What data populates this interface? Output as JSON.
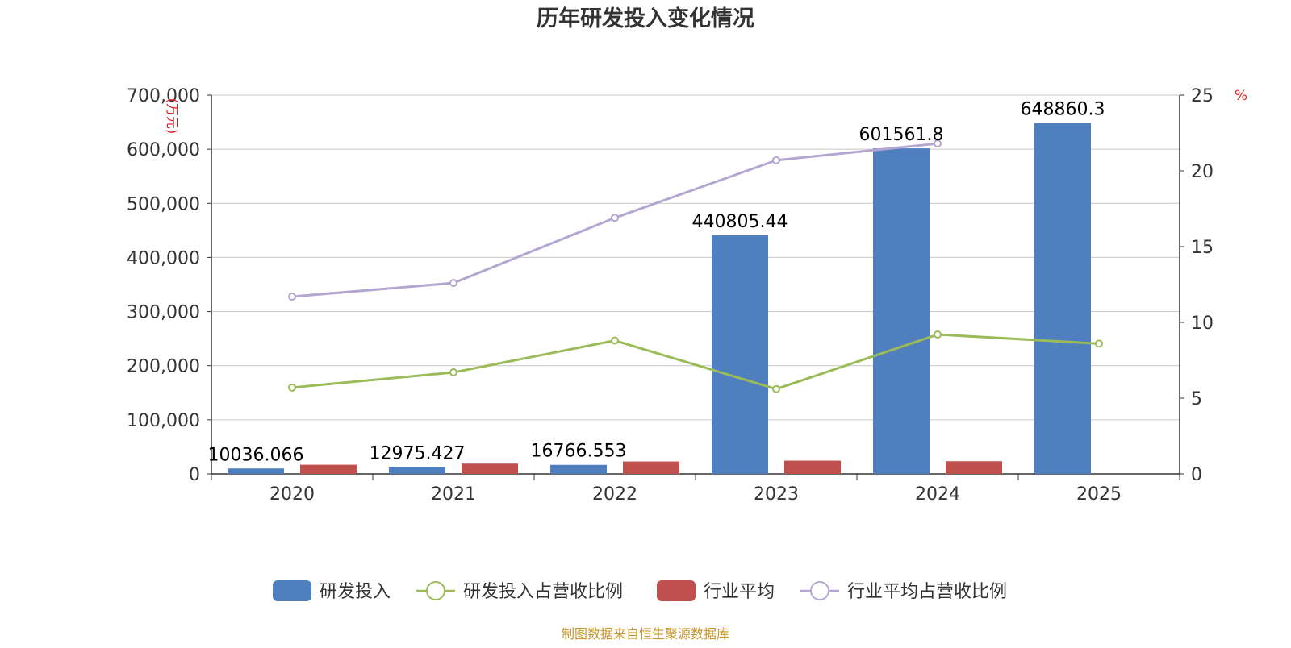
{
  "colors": {
    "rd_bar": "#4f7fbe",
    "industry_bar": "#c0504d",
    "rd_ratio_line": "#9bbb59",
    "industry_ratio_line": "#b3a7d1",
    "grid": "#c8c8c8",
    "axis": "#333333",
    "unit_text": "#e02020",
    "source_text": "#c8962a",
    "title_text": "#333333"
  },
  "chart_data": {
    "type": "bar",
    "title": "历年研发投入变化情况",
    "source": "制图数据来自恒生聚源数据库",
    "categories": [
      "2020",
      "2021",
      "2022",
      "2023",
      "2024",
      "2025"
    ],
    "left_axis": {
      "unit": "(万元)",
      "ylim": [
        0,
        700000
      ],
      "ticks": [
        "0",
        "100,000",
        "200,000",
        "300,000",
        "400,000",
        "500,000",
        "600,000",
        "700,000"
      ]
    },
    "right_axis": {
      "unit": "%",
      "ylim": [
        0,
        25
      ],
      "ticks": [
        "0",
        "5",
        "10",
        "15",
        "20",
        "25"
      ]
    },
    "grid": true,
    "legend_position": "bottom",
    "series": [
      {
        "name": "研发投入",
        "type": "bar",
        "axis": "left",
        "values": [
          10036.066,
          12975.427,
          16766.553,
          440805.44,
          601561.8,
          648860.3
        ],
        "labels": [
          "10036.066",
          "12975.427",
          "16766.553",
          "440805.44",
          "601561.8",
          "648860.3"
        ]
      },
      {
        "name": "研发投入占营收比例",
        "type": "line",
        "axis": "right",
        "values": [
          5.7,
          6.7,
          8.8,
          5.6,
          9.2,
          8.6
        ]
      },
      {
        "name": "行业平均",
        "type": "bar",
        "axis": "left",
        "values": [
          17000,
          19000,
          23000,
          24500,
          23500,
          null
        ]
      },
      {
        "name": "行业平均占营收比例",
        "type": "line",
        "axis": "right",
        "values": [
          11.7,
          12.6,
          16.9,
          20.7,
          21.8,
          null
        ]
      }
    ]
  }
}
